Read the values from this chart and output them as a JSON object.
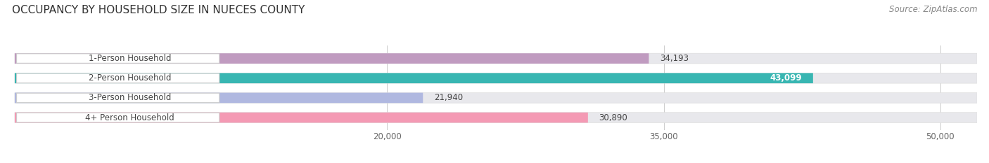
{
  "title": "OCCUPANCY BY HOUSEHOLD SIZE IN NUECES COUNTY",
  "source": "Source: ZipAtlas.com",
  "categories": [
    "1-Person Household",
    "2-Person Household",
    "3-Person Household",
    "4+ Person Household"
  ],
  "values": [
    34193,
    43099,
    21940,
    30890
  ],
  "colors": [
    "#c09bc0",
    "#38b6b2",
    "#b0b8e0",
    "#f49ab4"
  ],
  "bar_labels": [
    "34,193",
    "43,099",
    "21,940",
    "30,890"
  ],
  "label_inside_white": [
    false,
    true,
    false,
    false
  ],
  "xmin": 0,
  "xmax": 52000,
  "xlim_display_min": 15000,
  "xticks": [
    20000,
    35000,
    50000
  ],
  "xtick_labels": [
    "20,000",
    "35,000",
    "50,000"
  ],
  "bar_height": 0.52,
  "background_color": "#ffffff",
  "bar_bg_color": "#e8e8ec",
  "title_fontsize": 11,
  "source_fontsize": 8.5,
  "label_fontsize": 8.5,
  "value_fontsize": 8.5,
  "tick_fontsize": 8.5,
  "grid_color": "#cccccc",
  "text_color": "#444444",
  "source_color": "#888888"
}
